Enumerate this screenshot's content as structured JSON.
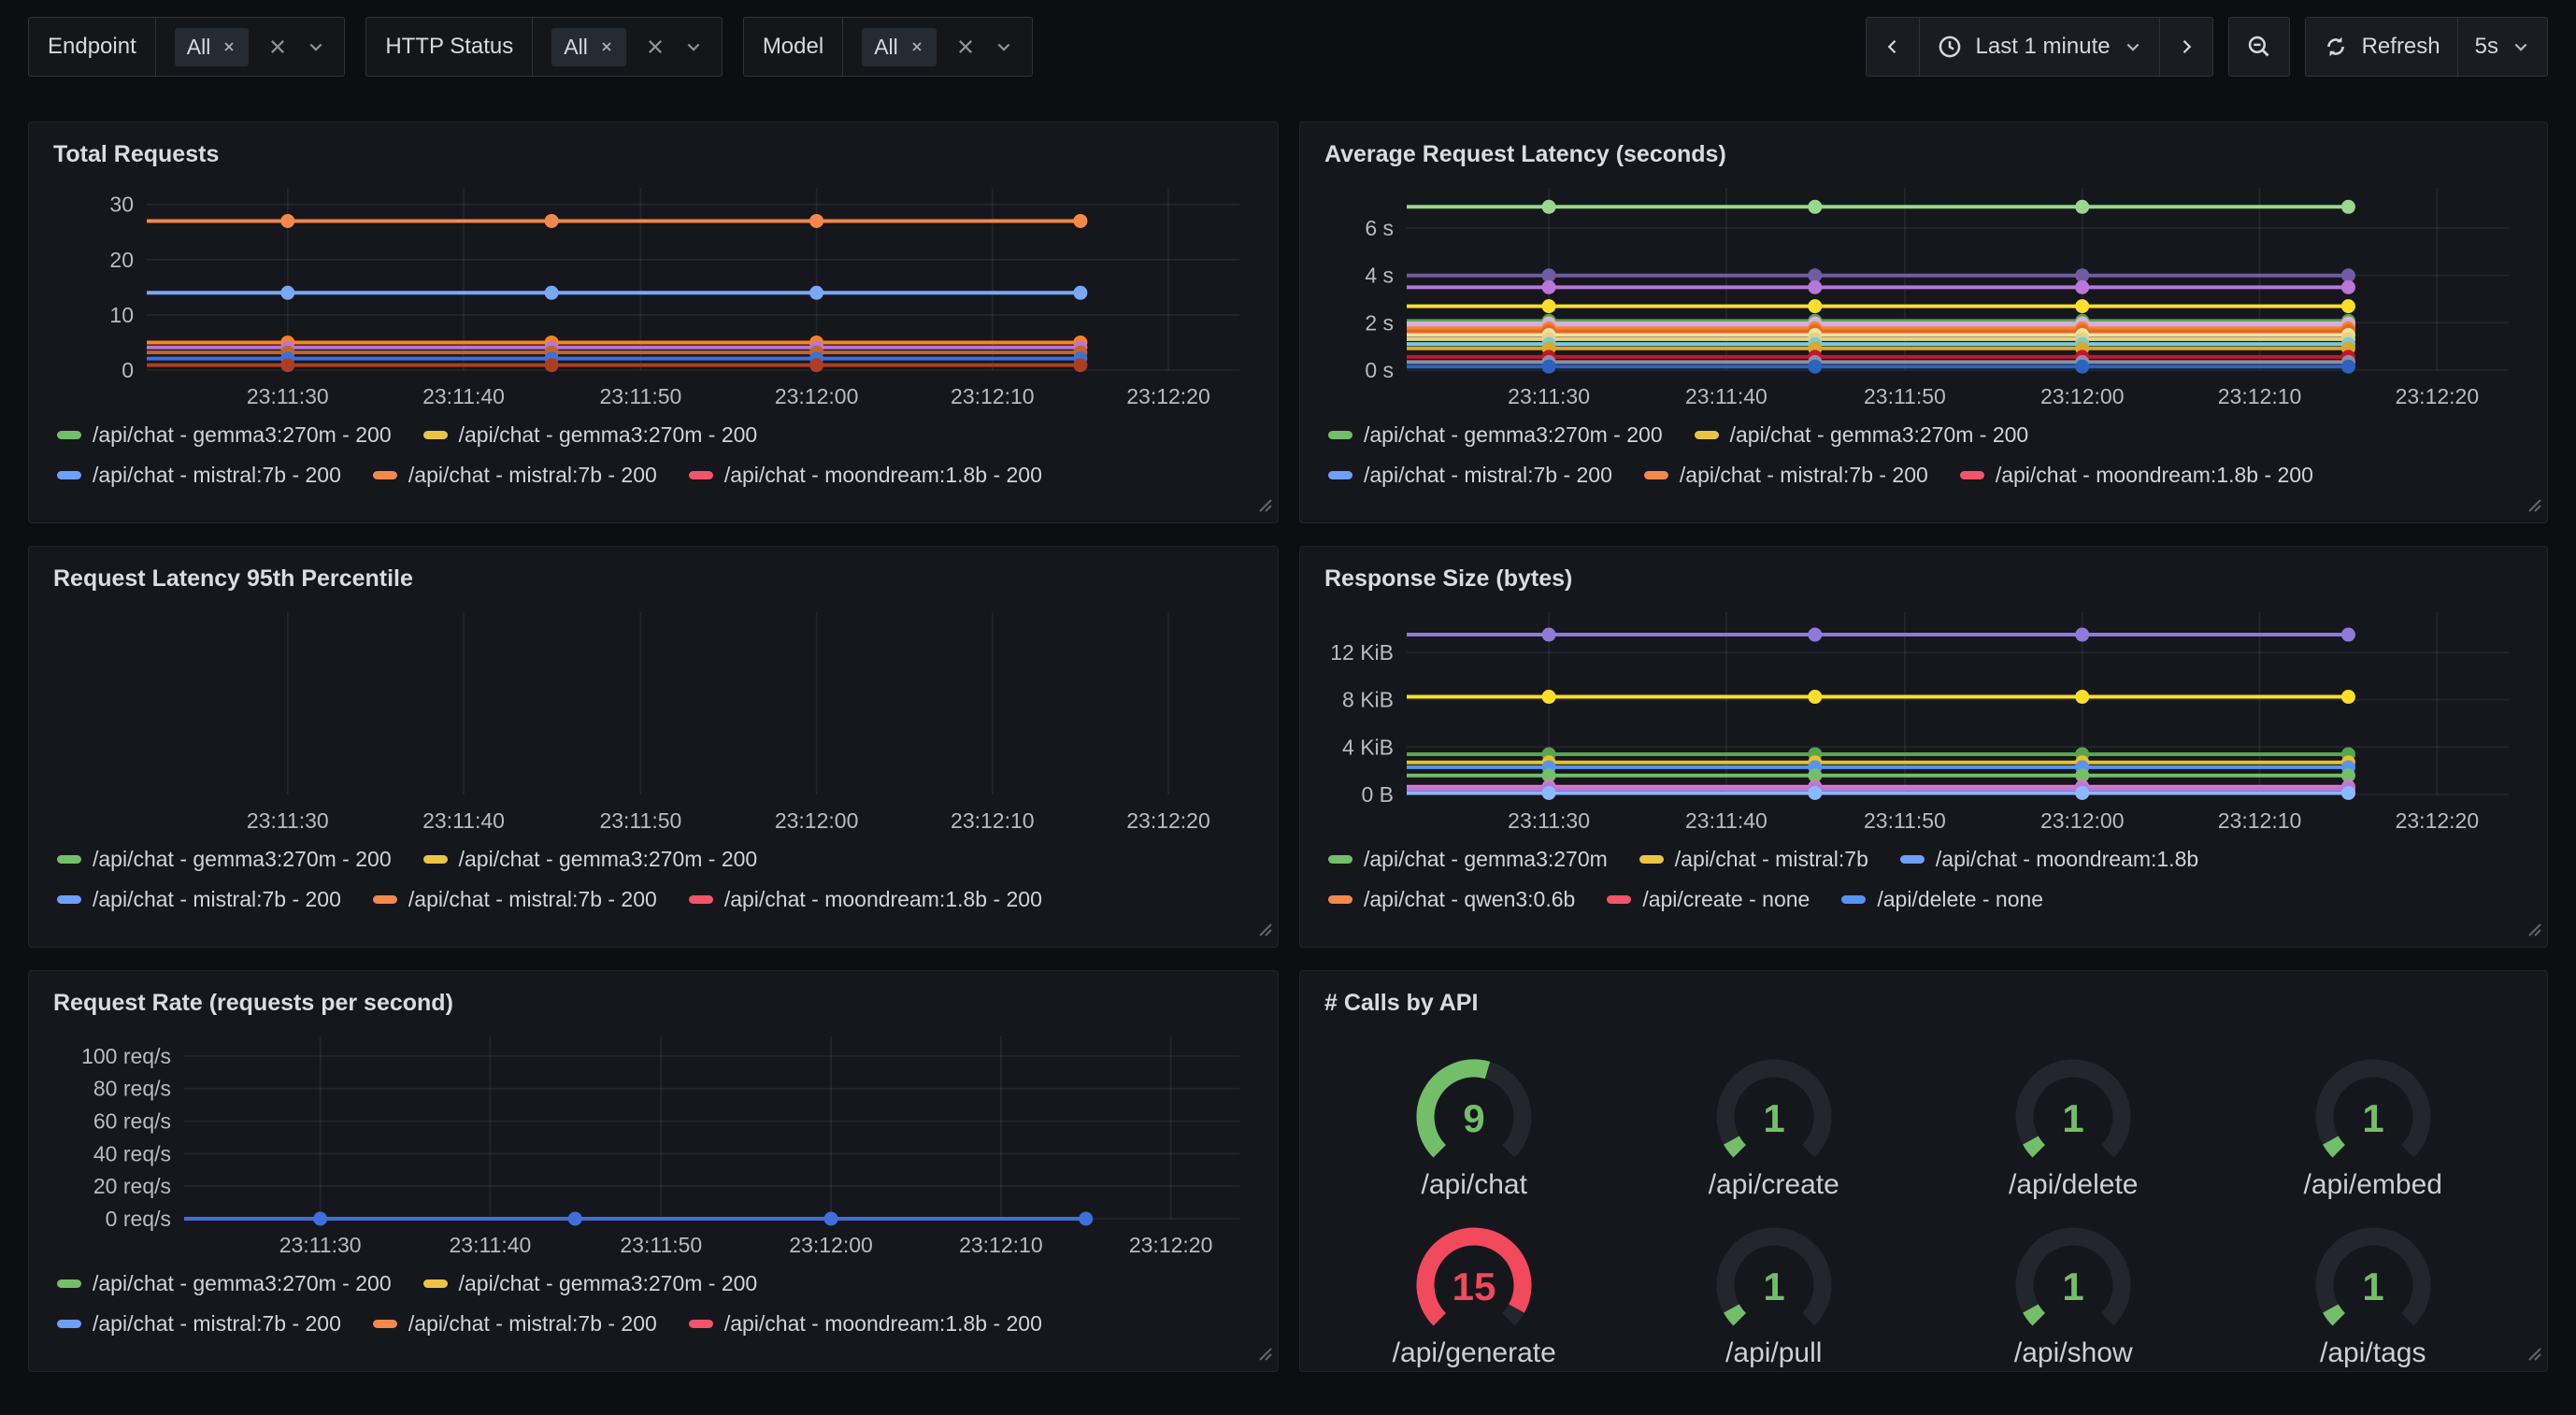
{
  "toolbar": {
    "filters": [
      {
        "label": "Endpoint",
        "chip": "All"
      },
      {
        "label": "HTTP Status",
        "chip": "All"
      },
      {
        "label": "Model",
        "chip": "All"
      }
    ],
    "time_range": "Last 1 minute",
    "refresh_label": "Refresh",
    "refresh_interval": "5s"
  },
  "theme": {
    "page_bg": "#0D0E12",
    "panel_bg": "#16171D",
    "grid_color": "rgba(204,204,220,0.09)",
    "axis_text": "#B9BBC1",
    "green": "#73BF69",
    "red": "#F2495C"
  },
  "time_axis": [
    "23:11:30",
    "23:11:40",
    "23:11:50",
    "23:12:00",
    "23:12:10",
    "23:12:20"
  ],
  "legends": {
    "status": {
      "rows": [
        [
          {
            "color": "#73BF69",
            "label": "/api/chat - gemma3:270m - 200"
          },
          {
            "color": "#EAC545",
            "label": "/api/chat - gemma3:270m - 200"
          }
        ],
        [
          {
            "color": "#6E9FFF",
            "label": "/api/chat - mistral:7b - 200"
          },
          {
            "color": "#F2894A",
            "label": "/api/chat - mistral:7b - 200"
          },
          {
            "color": "#F2556A",
            "label": "/api/chat - moondream:1.8b - 200"
          }
        ]
      ]
    },
    "size": {
      "rows": [
        [
          {
            "color": "#73BF69",
            "label": "/api/chat - gemma3:270m"
          },
          {
            "color": "#EAC545",
            "label": "/api/chat - mistral:7b"
          },
          {
            "color": "#6E9FFF",
            "label": "/api/chat - moondream:1.8b"
          }
        ],
        [
          {
            "color": "#F2894A",
            "label": "/api/chat - qwen3:0.6b"
          },
          {
            "color": "#F2556A",
            "label": "/api/create - none"
          },
          {
            "color": "#5794F2",
            "label": "/api/delete - none"
          }
        ]
      ]
    }
  },
  "panels": {
    "total_requests": {
      "title": "Total Requests",
      "legend": "status",
      "chart_data": {
        "type": "line",
        "x": [
          "23:11:30",
          "23:11:45",
          "23:12:00",
          "23:12:15"
        ],
        "ylim": [
          0,
          33
        ],
        "y_ticks": [
          {
            "value": 0,
            "label": "0"
          },
          {
            "value": 10,
            "label": "10"
          },
          {
            "value": 20,
            "label": "20"
          },
          {
            "value": 30,
            "label": "30"
          }
        ],
        "series": [
          {
            "color": "#F2894A",
            "y": 27
          },
          {
            "color": "#79A9F5",
            "y": 14
          },
          {
            "color": "#FF821C",
            "y": 5
          },
          {
            "color": "#B877D9",
            "y": 4.1
          },
          {
            "color": "#C0652E",
            "y": 3.2
          },
          {
            "color": "#3D71D9",
            "y": 2.1
          },
          {
            "color": "#AD3E1F",
            "y": 0.9
          }
        ]
      }
    },
    "avg_latency": {
      "title": "Average Request Latency (seconds)",
      "legend": "status",
      "chart_data": {
        "type": "line",
        "x": [
          "23:11:30",
          "23:11:45",
          "23:12:00",
          "23:12:15"
        ],
        "ylim": [
          0,
          7.7
        ],
        "y_ticks": [
          {
            "value": 0,
            "label": "0 s"
          },
          {
            "value": 2,
            "label": "2 s"
          },
          {
            "value": 4,
            "label": "4 s"
          },
          {
            "value": 6,
            "label": "6 s"
          }
        ],
        "series": [
          {
            "color": "#96D98D",
            "y": 6.9
          },
          {
            "color": "#705DA0",
            "y": 4.0
          },
          {
            "color": "#B877D9",
            "y": 3.5
          },
          {
            "color": "#FADE2A",
            "y": 2.7
          },
          {
            "color": "#56A64B",
            "y": 2.08
          },
          {
            "color": "#E8A9DE",
            "y": 1.97
          },
          {
            "color": "#C7B3E8",
            "y": 1.88
          },
          {
            "color": "#FF821C",
            "y": 1.76
          },
          {
            "color": "#E0692C",
            "y": 1.64
          },
          {
            "color": "#F2E3A0",
            "y": 1.48
          },
          {
            "color": "#E5D285",
            "y": 1.31
          },
          {
            "color": "#6ED0E0",
            "y": 1.1
          },
          {
            "color": "#D9A82E",
            "y": 0.92
          },
          {
            "color": "#C4162A",
            "y": 0.56
          },
          {
            "color": "#8A8FA8",
            "y": 0.34
          },
          {
            "color": "#2B63C0",
            "y": 0.15
          }
        ]
      }
    },
    "p95_latency": {
      "title": "Request Latency 95th Percentile",
      "legend": "status",
      "chart_data": {
        "type": "line",
        "x": [],
        "ylim": [
          0,
          1
        ],
        "y_ticks": [],
        "series": []
      }
    },
    "response_size": {
      "title": "Response Size (bytes)",
      "legend": "size",
      "chart_data": {
        "type": "line",
        "x": [
          "23:11:30",
          "23:11:45",
          "23:12:00",
          "23:12:15"
        ],
        "ylim": [
          0,
          15.4
        ],
        "y_ticks": [
          {
            "value": 0,
            "label": "0 B"
          },
          {
            "value": 4,
            "label": "4 KiB"
          },
          {
            "value": 8,
            "label": "8 KiB"
          },
          {
            "value": 12,
            "label": "12 KiB"
          }
        ],
        "series": [
          {
            "color": "#8F7AD9",
            "y": 13.5
          },
          {
            "color": "#FADE2A",
            "y": 8.25
          },
          {
            "color": "#56A64B",
            "y": 3.4
          },
          {
            "color": "#E8C227",
            "y": 2.7
          },
          {
            "color": "#5794F2",
            "y": 2.3
          },
          {
            "color": "#73BF69",
            "y": 1.6
          },
          {
            "color": "#DE77C9",
            "y": 0.65
          },
          {
            "color": "#B877D9",
            "y": 0.45
          },
          {
            "color": "#8AB8FF",
            "y": 0.12
          }
        ]
      }
    },
    "request_rate": {
      "title": "Request Rate (requests per second)",
      "legend": "status",
      "chart_data": {
        "type": "line",
        "x": [
          "23:11:30",
          "23:11:45",
          "23:12:00",
          "23:12:15"
        ],
        "ylim": [
          0,
          112
        ],
        "y_ticks": [
          {
            "value": 0,
            "label": "0 req/s"
          },
          {
            "value": 20,
            "label": "20 req/s"
          },
          {
            "value": 40,
            "label": "40 req/s"
          },
          {
            "value": 60,
            "label": "60 req/s"
          },
          {
            "value": 80,
            "label": "80 req/s"
          },
          {
            "value": 100,
            "label": "100 req/s"
          }
        ],
        "series": [
          {
            "color": "#3D71D9",
            "y": 0
          }
        ]
      }
    },
    "calls_by_api": {
      "title": "# Calls by API",
      "gauges": [
        {
          "label": "/api/chat",
          "value": "9",
          "color": "#73BF69",
          "fraction": 0.56
        },
        {
          "label": "/api/create",
          "value": "1",
          "color": "#73BF69",
          "fraction": 0.06
        },
        {
          "label": "/api/delete",
          "value": "1",
          "color": "#73BF69",
          "fraction": 0.06
        },
        {
          "label": "/api/embed",
          "value": "1",
          "color": "#73BF69",
          "fraction": 0.06
        },
        {
          "label": "/api/generate",
          "value": "15",
          "color": "#F2495C",
          "fraction": 0.94
        },
        {
          "label": "/api/pull",
          "value": "1",
          "color": "#73BF69",
          "fraction": 0.06
        },
        {
          "label": "/api/show",
          "value": "1",
          "color": "#73BF69",
          "fraction": 0.06
        },
        {
          "label": "/api/tags",
          "value": "1",
          "color": "#73BF69",
          "fraction": 0.06
        }
      ]
    }
  }
}
